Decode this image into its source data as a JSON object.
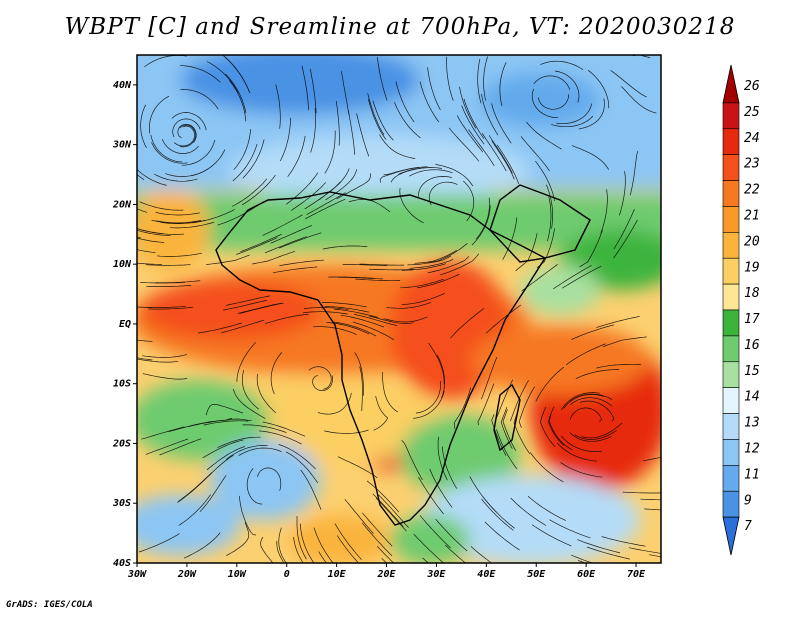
{
  "title": "WBPT [C] and Sreamline at 700hPa, VT: 2020030218",
  "footer": "GrADS: IGES/COLA",
  "map": {
    "lon_range": [
      -30,
      75
    ],
    "lat_range": [
      -40,
      45
    ],
    "lat_ticks": [
      {
        "value": 40,
        "label": "40N"
      },
      {
        "value": 30,
        "label": "30N"
      },
      {
        "value": 20,
        "label": "20N"
      },
      {
        "value": 10,
        "label": "10N"
      },
      {
        "value": 0,
        "label": "EQ"
      },
      {
        "value": -10,
        "label": "10S"
      },
      {
        "value": -20,
        "label": "20S"
      },
      {
        "value": -30,
        "label": "30S"
      },
      {
        "value": -40,
        "label": "40S"
      }
    ],
    "lon_ticks": [
      {
        "value": -30,
        "label": "30W"
      },
      {
        "value": -20,
        "label": "20W"
      },
      {
        "value": -10,
        "label": "10W"
      },
      {
        "value": 0,
        "label": "0"
      },
      {
        "value": 10,
        "label": "10E"
      },
      {
        "value": 20,
        "label": "20E"
      },
      {
        "value": 30,
        "label": "30E"
      },
      {
        "value": 40,
        "label": "40E"
      },
      {
        "value": 50,
        "label": "50E"
      },
      {
        "value": 60,
        "label": "60E"
      },
      {
        "value": 70,
        "label": "70E"
      }
    ]
  },
  "colorbar": {
    "labels": [
      "26",
      "25",
      "24",
      "23",
      "22",
      "21",
      "20",
      "19",
      "18",
      "17",
      "16",
      "15",
      "14",
      "13",
      "12",
      "11",
      "9",
      "7"
    ],
    "colors": [
      "#a50000",
      "#c81414",
      "#e62a10",
      "#f4501c",
      "#f67820",
      "#f89a28",
      "#fab43c",
      "#fccf64",
      "#fde796",
      "#3cb43c",
      "#6ecb6e",
      "#a8e0a0",
      "#e2f4fc",
      "#b4dcf8",
      "#8cc6f4",
      "#64aaec",
      "#4a92e4",
      "#2a70d8"
    ]
  },
  "field": {
    "regions": [
      {
        "name": "north-cold-band",
        "color": "#8cc6f4"
      },
      {
        "name": "mediterranean-cold-core",
        "color": "#4a92e4"
      },
      {
        "name": "sahara-cool",
        "color": "#b4dcf8"
      },
      {
        "name": "sahel-green",
        "color": "#6ecb6e"
      },
      {
        "name": "tropical-warm-belt",
        "color": "#f4501c"
      },
      {
        "name": "southern-yellow",
        "color": "#fccf64"
      },
      {
        "name": "south-atlantic-cold",
        "color": "#8cc6f4"
      },
      {
        "name": "indian-ocean-hot",
        "color": "#e62a10"
      }
    ]
  }
}
